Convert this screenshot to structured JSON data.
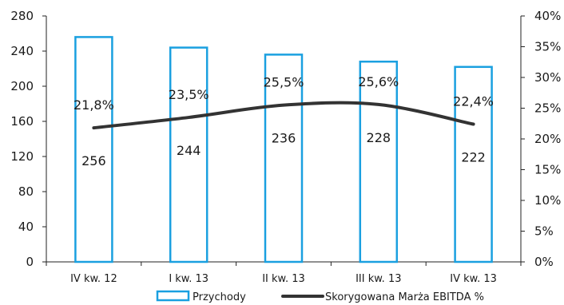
{
  "chart_data": {
    "type": "bar+line",
    "categories": [
      "IV kw. 12",
      "I kw. 13",
      "II kw. 13",
      "III kw. 13",
      "IV kw. 13"
    ],
    "series": [
      {
        "name": "Przychody",
        "type": "bar",
        "axis": "left",
        "values": [
          256,
          244,
          236,
          228,
          222
        ],
        "labels": [
          "256",
          "244",
          "236",
          "228",
          "222"
        ]
      },
      {
        "name": "Skorygowana Marża EBITDA %",
        "type": "line",
        "axis": "right",
        "values": [
          21.8,
          23.5,
          25.5,
          25.6,
          22.4
        ],
        "labels": [
          "21,8%",
          "23,5%",
          "25,5%",
          "25,6%",
          "22,4%"
        ]
      }
    ],
    "y_left": {
      "min": 0,
      "max": 280,
      "ticks": [
        "0",
        "40",
        "80",
        "120",
        "160",
        "200",
        "240",
        "280"
      ]
    },
    "y_right": {
      "min": 0,
      "max": 40,
      "ticks": [
        "0%",
        "5%",
        "10%",
        "15%",
        "20%",
        "25%",
        "30%",
        "35%",
        "40%"
      ]
    },
    "grid": false,
    "legend_position": "bottom",
    "colors": {
      "bar": "#1aa0e0",
      "line": "#333333"
    }
  }
}
